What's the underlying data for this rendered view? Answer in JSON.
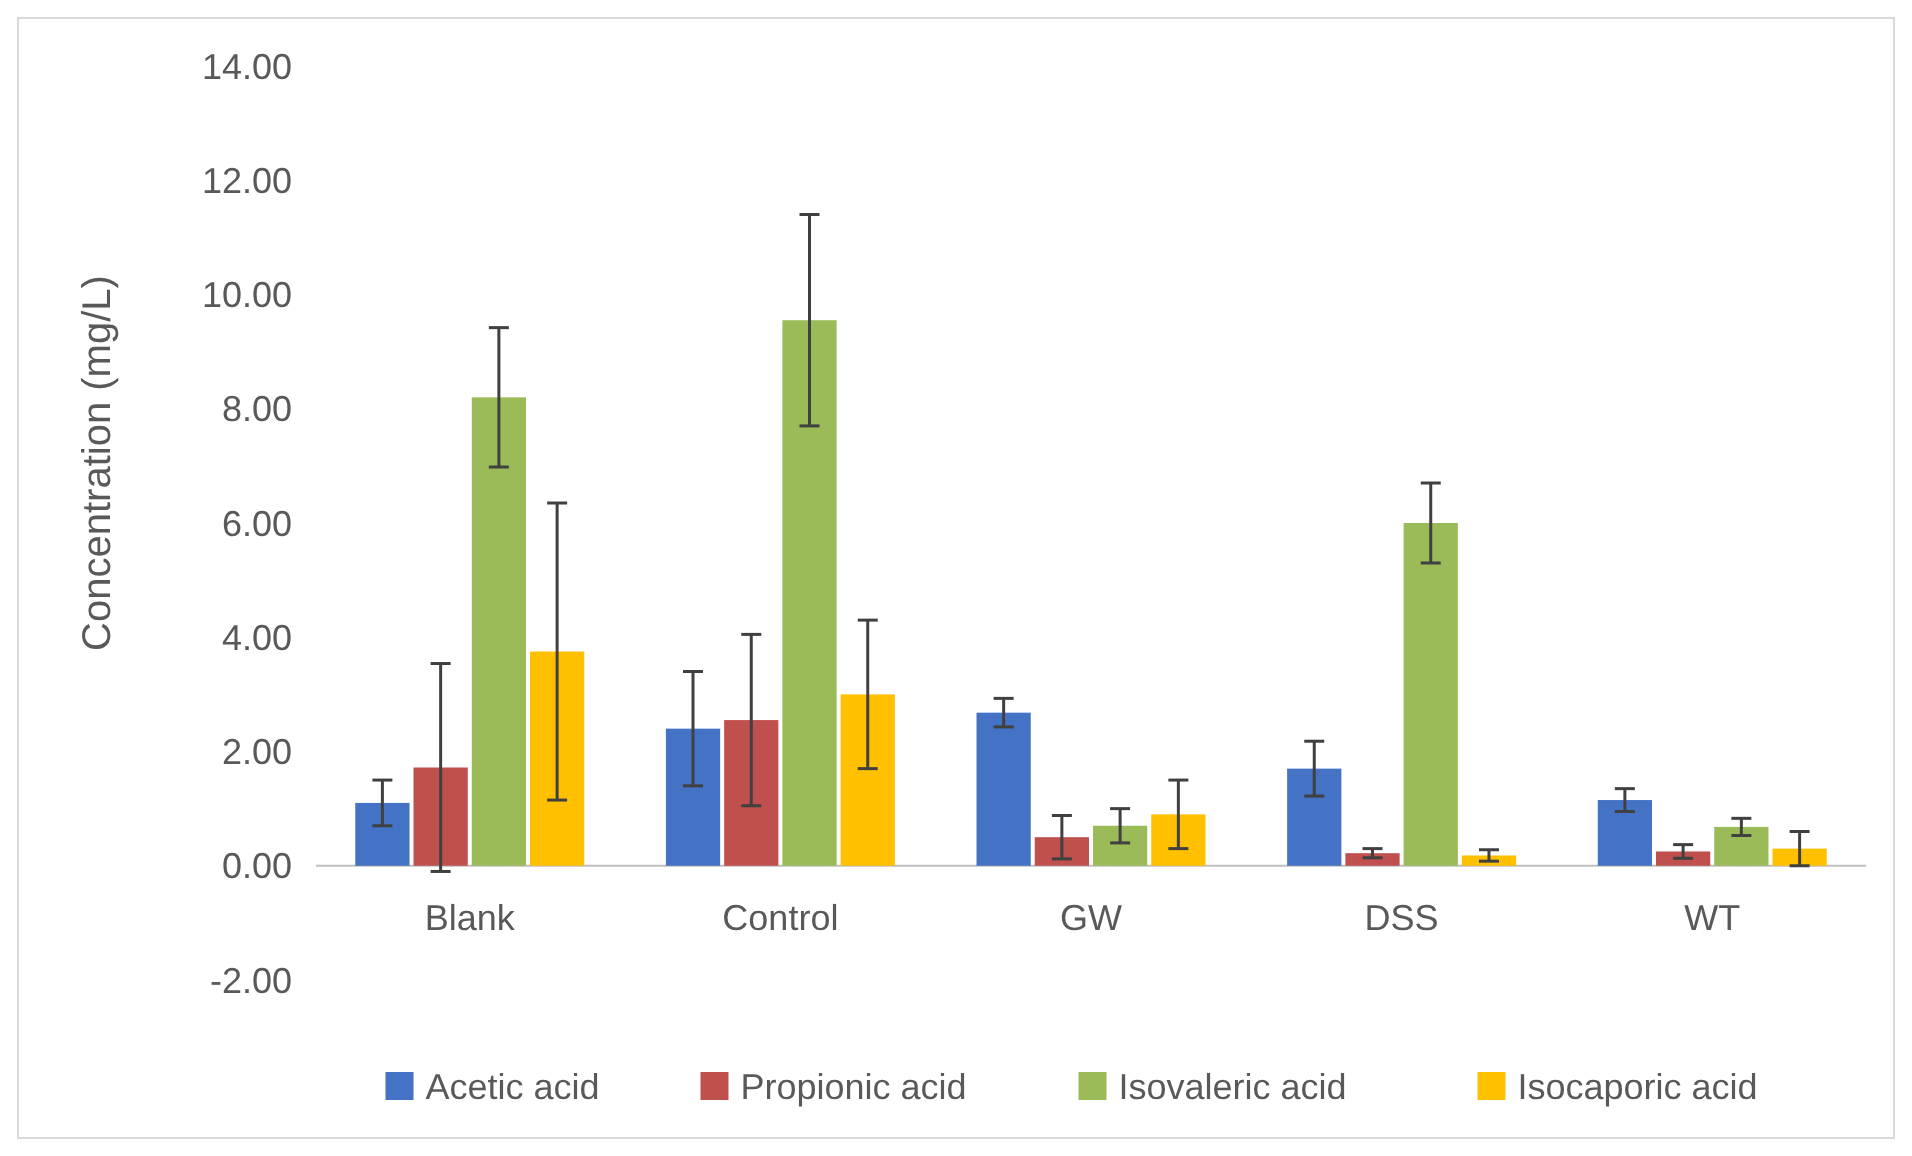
{
  "chart_data": {
    "type": "bar",
    "ylabel": "Concentration (mg/L)",
    "categories": [
      "Blank",
      "Control",
      "GW",
      "DSS",
      "WT"
    ],
    "series": [
      {
        "name": "Acetic acid",
        "color": "#4472c4",
        "values": [
          1.1,
          2.4,
          2.68,
          1.7,
          1.15
        ],
        "errors": [
          0.4,
          1.0,
          0.25,
          0.48,
          0.2
        ]
      },
      {
        "name": "Propionic acid",
        "color": "#c0504d",
        "values": [
          1.72,
          2.55,
          0.5,
          0.22,
          0.25
        ],
        "errors": [
          1.82,
          1.5,
          0.38,
          0.08,
          0.12
        ]
      },
      {
        "name": "Isovaleric acid",
        "color": "#9bbb59",
        "values": [
          8.2,
          9.55,
          0.7,
          6.0,
          0.68
        ],
        "errors": [
          1.22,
          1.85,
          0.3,
          0.7,
          0.15
        ]
      },
      {
        "name": "Isocaporic acid",
        "color": "#ffc000",
        "values": [
          3.75,
          3.0,
          0.9,
          0.18,
          0.3
        ],
        "errors": [
          2.6,
          1.3,
          0.6,
          0.1,
          0.3
        ]
      }
    ],
    "ylim": [
      -2,
      14
    ],
    "yticks": [
      {
        "value": -2,
        "label": "-2.00"
      },
      {
        "value": 0,
        "label": "0.00"
      },
      {
        "value": 2,
        "label": "2.00"
      },
      {
        "value": 4,
        "label": "4.00"
      },
      {
        "value": 6,
        "label": "6.00"
      },
      {
        "value": 8,
        "label": "8.00"
      },
      {
        "value": 10,
        "label": "10.00"
      },
      {
        "value": 12,
        "label": "12.00"
      },
      {
        "value": 14,
        "label": "14.00"
      }
    ],
    "grid": false,
    "legend": "bottom"
  }
}
